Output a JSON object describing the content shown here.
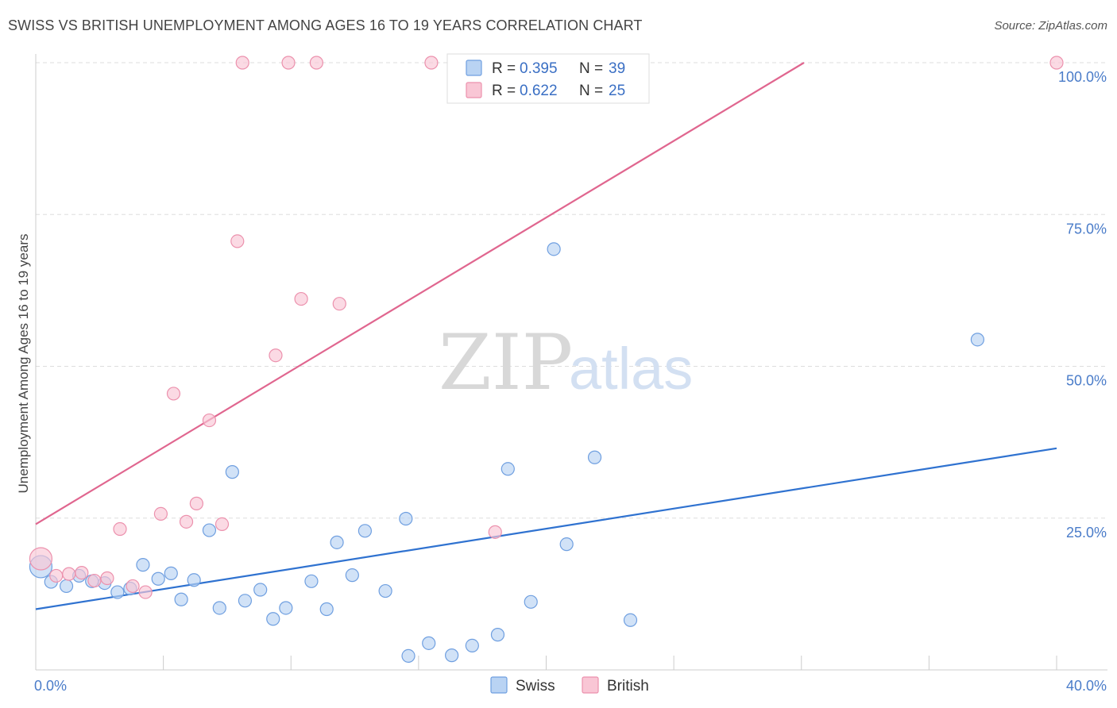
{
  "title": "SWISS VS BRITISH UNEMPLOYMENT AMONG AGES 16 TO 19 YEARS CORRELATION CHART",
  "source": "Source: ZipAtlas.com",
  "watermark": {
    "zip": "ZIP",
    "atlas": "atlas"
  },
  "colors": {
    "swiss_fill": "#b9d3f3",
    "swiss_stroke": "#6f9fe0",
    "swiss_line": "#2f72d0",
    "british_fill": "#f9c6d5",
    "british_stroke": "#ec91ad",
    "british_line": "#e0668f",
    "grid": "#dddddd"
  },
  "legend": {
    "rows": [
      {
        "r_label": "R = ",
        "r_value": "0.395",
        "n_label": "N = ",
        "n_value": "39"
      },
      {
        "r_label": "R = ",
        "r_value": "0.622",
        "n_label": "N = ",
        "n_value": "25"
      }
    ]
  },
  "chart_data": {
    "type": "scatter",
    "xlabel": "",
    "ylabel": "Unemployment Among Ages 16 to 19 years",
    "xlim": [
      0,
      40
    ],
    "ylim": [
      0,
      100
    ],
    "x_tick_labels": [
      {
        "value": 0,
        "label": "0.0%"
      },
      {
        "value": 40,
        "label": "40.0%"
      }
    ],
    "y_tick_labels": [
      {
        "value": 25,
        "label": "25.0%"
      },
      {
        "value": 50,
        "label": "50.0%"
      },
      {
        "value": 75,
        "label": "75.0%"
      },
      {
        "value": 100,
        "label": "100.0%"
      }
    ],
    "grid": true,
    "legend_position": "top-center",
    "series": [
      {
        "name": "Swiss",
        "R": 0.395,
        "N": 39,
        "trend": {
          "x": [
            0,
            40
          ],
          "y": [
            10.0,
            36.5
          ]
        },
        "points": [
          {
            "x": 0.2,
            "y": 17.0,
            "big": true
          },
          {
            "x": 0.6,
            "y": 14.5
          },
          {
            "x": 1.2,
            "y": 13.8
          },
          {
            "x": 1.7,
            "y": 15.5
          },
          {
            "x": 2.2,
            "y": 14.6
          },
          {
            "x": 2.7,
            "y": 14.3
          },
          {
            "x": 3.2,
            "y": 12.8
          },
          {
            "x": 3.7,
            "y": 13.4
          },
          {
            "x": 4.2,
            "y": 17.3
          },
          {
            "x": 4.8,
            "y": 15.0
          },
          {
            "x": 5.3,
            "y": 15.9
          },
          {
            "x": 5.7,
            "y": 11.6
          },
          {
            "x": 6.2,
            "y": 14.8
          },
          {
            "x": 6.8,
            "y": 23.0
          },
          {
            "x": 7.2,
            "y": 10.2
          },
          {
            "x": 7.7,
            "y": 32.6
          },
          {
            "x": 8.2,
            "y": 11.4
          },
          {
            "x": 8.8,
            "y": 13.2
          },
          {
            "x": 9.3,
            "y": 8.4
          },
          {
            "x": 9.8,
            "y": 10.2
          },
          {
            "x": 10.8,
            "y": 14.6
          },
          {
            "x": 11.4,
            "y": 10.0
          },
          {
            "x": 11.8,
            "y": 21.0
          },
          {
            "x": 12.4,
            "y": 15.6
          },
          {
            "x": 12.9,
            "y": 22.9
          },
          {
            "x": 13.7,
            "y": 13.0
          },
          {
            "x": 14.5,
            "y": 24.9
          },
          {
            "x": 14.6,
            "y": 2.3
          },
          {
            "x": 15.4,
            "y": 4.4
          },
          {
            "x": 16.3,
            "y": 2.4
          },
          {
            "x": 17.1,
            "y": 4.0
          },
          {
            "x": 18.1,
            "y": 5.8
          },
          {
            "x": 18.5,
            "y": 33.1
          },
          {
            "x": 19.4,
            "y": 11.2
          },
          {
            "x": 20.3,
            "y": 69.3
          },
          {
            "x": 20.8,
            "y": 20.7
          },
          {
            "x": 21.9,
            "y": 35.0
          },
          {
            "x": 23.3,
            "y": 8.2
          },
          {
            "x": 36.9,
            "y": 54.4
          }
        ]
      },
      {
        "name": "British",
        "R": 0.622,
        "N": 25,
        "trend": {
          "x": [
            0,
            30.1
          ],
          "y": [
            24.0,
            100.0
          ]
        },
        "points": [
          {
            "x": 0.2,
            "y": 18.3,
            "big": true
          },
          {
            "x": 0.8,
            "y": 15.5
          },
          {
            "x": 1.3,
            "y": 15.8
          },
          {
            "x": 1.8,
            "y": 16.0
          },
          {
            "x": 2.3,
            "y": 14.7
          },
          {
            "x": 2.8,
            "y": 15.1
          },
          {
            "x": 3.3,
            "y": 23.2
          },
          {
            "x": 3.8,
            "y": 13.8
          },
          {
            "x": 4.3,
            "y": 12.8
          },
          {
            "x": 4.9,
            "y": 25.7
          },
          {
            "x": 5.4,
            "y": 45.5
          },
          {
            "x": 5.9,
            "y": 24.4
          },
          {
            "x": 6.3,
            "y": 27.4
          },
          {
            "x": 6.8,
            "y": 41.1
          },
          {
            "x": 7.3,
            "y": 24.0
          },
          {
            "x": 7.9,
            "y": 70.6
          },
          {
            "x": 8.1,
            "y": 100.0
          },
          {
            "x": 9.4,
            "y": 51.8
          },
          {
            "x": 9.9,
            "y": 100.0
          },
          {
            "x": 10.4,
            "y": 61.1
          },
          {
            "x": 11.0,
            "y": 100.0
          },
          {
            "x": 11.9,
            "y": 60.3
          },
          {
            "x": 15.5,
            "y": 100.0
          },
          {
            "x": 18.0,
            "y": 22.7
          },
          {
            "x": 40.0,
            "y": 100.0
          }
        ]
      }
    ]
  }
}
